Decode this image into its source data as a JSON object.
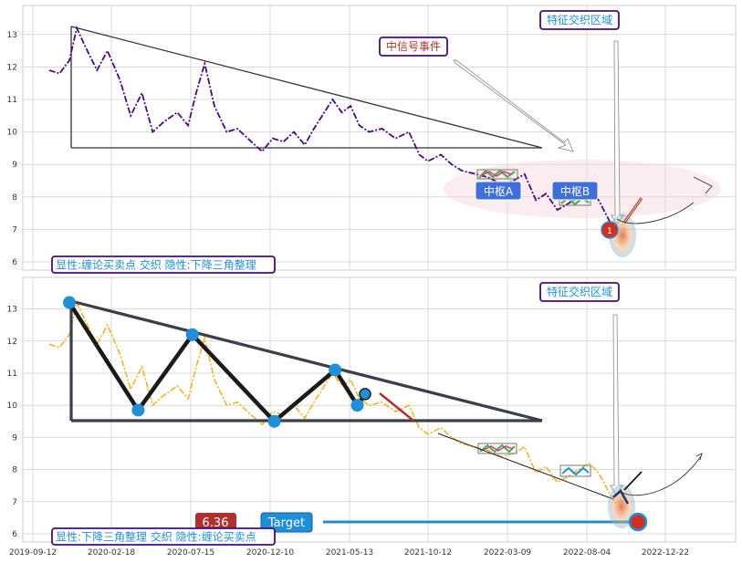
{
  "chart_data": [
    {
      "type": "line",
      "panel": "top",
      "yticks": [
        6,
        7,
        8,
        9,
        10,
        11,
        12,
        13
      ],
      "ylim": [
        5.75,
        13.95
      ],
      "grid": true,
      "price_series": {
        "color": "#4b0a7a",
        "x": [
          "2019-10-15",
          "2019-11-05",
          "2019-11-25",
          "2019-12-10",
          "2019-12-28",
          "2020-01-20",
          "2020-02-10",
          "2020-03-05",
          "2020-03-25",
          "2020-04-15",
          "2020-05-05",
          "2020-05-25",
          "2020-06-20",
          "2020-07-10",
          "2020-07-25",
          "2020-08-10",
          "2020-08-28",
          "2020-09-20",
          "2020-10-10",
          "2020-11-05",
          "2020-11-25",
          "2020-12-15",
          "2021-01-05",
          "2021-01-25",
          "2021-02-15",
          "2021-03-05",
          "2021-03-25",
          "2021-04-10",
          "2021-04-28",
          "2021-05-15",
          "2021-06-01",
          "2021-06-20",
          "2021-07-15",
          "2021-08-10",
          "2021-09-05",
          "2021-09-25",
          "2021-10-12",
          "2021-11-05",
          "2021-11-25",
          "2021-12-15",
          "2022-01-10",
          "2022-02-01",
          "2022-02-25",
          "2022-03-20",
          "2022-04-10",
          "2022-05-01",
          "2022-05-20",
          "2022-06-10",
          "2022-07-01",
          "2022-07-20",
          "2022-08-08",
          "2022-08-25",
          "2022-09-12",
          "2022-09-26"
        ],
        "values": [
          11.9,
          11.8,
          12.2,
          13.2,
          12.6,
          11.9,
          12.5,
          11.6,
          10.5,
          11.2,
          10.0,
          10.3,
          10.6,
          10.2,
          11.2,
          12.1,
          10.8,
          10.0,
          10.1,
          9.7,
          9.4,
          9.8,
          9.7,
          10.0,
          9.6,
          10.1,
          10.6,
          11.0,
          10.6,
          10.8,
          10.2,
          10.0,
          10.1,
          9.8,
          10.0,
          9.3,
          9.1,
          9.3,
          9.0,
          8.8,
          8.7,
          8.6,
          8.4,
          8.5,
          8.7,
          7.9,
          8.1,
          7.6,
          7.8,
          8.0,
          8.2,
          7.9,
          7.3,
          6.9
        ]
      },
      "annotations": {
        "signal_event": "中信号事件",
        "feature_region": "特征交织区域",
        "zhongshu_a": "中枢A",
        "zhongshu_b": "中枢B",
        "marker_label": "1",
        "footer": "显性:缠论买卖点 交织 隐性:下降三角整理"
      },
      "triangle": {
        "apex_high": {
          "x": "2019-11-25",
          "y": 13.3
        },
        "base_left": {
          "x": "2019-11-25",
          "y": 9.5
        },
        "base_right": {
          "x": "2022-05-10",
          "y": 9.5
        }
      }
    },
    {
      "type": "line",
      "panel": "bottom",
      "yticks": [
        6,
        7,
        8,
        9,
        10,
        11,
        12,
        13
      ],
      "ylim": [
        5.75,
        13.95
      ],
      "grid": true,
      "xticks": [
        "2019-09-12",
        "2020-02-18",
        "2020-07-15",
        "2020-12-10",
        "2021-05-13",
        "2021-10-12",
        "2022-03-09",
        "2022-08-04",
        "2022-12-22"
      ],
      "price_series_color": "#f0b429",
      "zigzag_points": [
        {
          "x": "2019-11-25",
          "y": 13.2
        },
        {
          "x": "2020-04-08",
          "y": 9.85
        },
        {
          "x": "2020-07-18",
          "y": 12.2
        },
        {
          "x": "2020-12-18",
          "y": 9.5
        },
        {
          "x": "2021-04-15",
          "y": 11.1
        },
        {
          "x": "2021-05-28",
          "y": 10.0
        },
        {
          "x": "2021-06-12",
          "y": 10.35
        }
      ],
      "target_value": "6.36",
      "target_label": "Target",
      "annotations": {
        "feature_region": "特征交织区域",
        "footer": "显性:下降三角整理 交织 隐性:缠论买卖点"
      }
    }
  ],
  "colors": {
    "top_price": "#4b0a7a",
    "bottom_price": "#f0b429",
    "marker_blue": "#1f8fd8",
    "label_box_blue": "#3f6fd8",
    "footer_text": "#1f8fd8",
    "box_border": "#4b0a7a",
    "value_box": "#b03030",
    "target_box": "#1f8fd8"
  }
}
